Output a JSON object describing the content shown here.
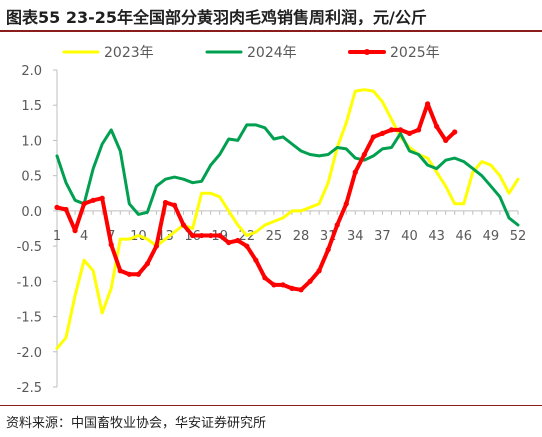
{
  "title": "图表55 23-25年全国部分黄羽肉毛鸡销售周利润，元/公斤",
  "source": "资料来源：中国畜牧业协会，华安证券研究所",
  "chart_data": {
    "type": "line",
    "title": "图表55 23-25年全国部分黄羽肉毛鸡销售周利润，元/公斤",
    "xlabel": "",
    "ylabel": "",
    "x": [
      1,
      2,
      3,
      4,
      5,
      6,
      7,
      8,
      9,
      10,
      11,
      12,
      13,
      14,
      15,
      16,
      17,
      18,
      19,
      20,
      21,
      22,
      23,
      24,
      25,
      26,
      27,
      28,
      29,
      30,
      31,
      32,
      33,
      34,
      35,
      36,
      37,
      38,
      39,
      40,
      41,
      42,
      43,
      44,
      45,
      46,
      47,
      48,
      49,
      50,
      51,
      52
    ],
    "x_tick_labels": [
      "1",
      "4",
      "7",
      "10",
      "13",
      "16",
      "19",
      "22",
      "25",
      "28",
      "31",
      "34",
      "37",
      "40",
      "43",
      "46",
      "49",
      "52"
    ],
    "x_tick_values": [
      1,
      4,
      7,
      10,
      13,
      16,
      19,
      22,
      25,
      28,
      31,
      34,
      37,
      40,
      43,
      46,
      49,
      52
    ],
    "ylim": [
      -2.5,
      2.0
    ],
    "y_ticks": [
      -2.5,
      -2.0,
      -1.5,
      -1.0,
      -0.5,
      0.0,
      0.5,
      1.0,
      1.5,
      2.0
    ],
    "y_tick_labels": [
      "-2.5",
      "-2.0",
      "-1.5",
      "-1.0",
      "-0.5",
      "0.0",
      "0.5",
      "1.0",
      "1.5",
      "2.0"
    ],
    "grid": false,
    "legend_position": "top",
    "series": [
      {
        "name": "2023年",
        "color": "#ffff00",
        "width": 3,
        "marker": false,
        "values": [
          -1.95,
          -1.8,
          -1.2,
          -0.7,
          -0.85,
          -1.45,
          -1.1,
          -0.4,
          -0.4,
          -0.35,
          -0.4,
          -0.5,
          -0.4,
          -0.3,
          -0.2,
          -0.25,
          0.25,
          0.25,
          0.2,
          0.0,
          -0.2,
          -0.35,
          -0.3,
          -0.2,
          -0.15,
          -0.1,
          0.0,
          0.0,
          0.05,
          0.1,
          0.4,
          0.9,
          1.25,
          1.7,
          1.72,
          1.7,
          1.55,
          1.3,
          1.05,
          0.9,
          0.8,
          0.75,
          0.55,
          0.35,
          0.1,
          0.1,
          0.55,
          0.7,
          0.65,
          0.5,
          0.25,
          0.45
        ]
      },
      {
        "name": "2024年",
        "color": "#00a050",
        "width": 3,
        "marker": false,
        "values": [
          0.78,
          0.4,
          0.15,
          0.1,
          0.6,
          0.95,
          1.15,
          0.85,
          0.1,
          -0.05,
          -0.02,
          0.35,
          0.45,
          0.48,
          0.45,
          0.4,
          0.42,
          0.65,
          0.8,
          1.02,
          1.0,
          1.22,
          1.22,
          1.18,
          1.02,
          1.05,
          0.95,
          0.85,
          0.8,
          0.78,
          0.8,
          0.9,
          0.88,
          0.75,
          0.72,
          0.78,
          0.88,
          0.9,
          1.1,
          0.85,
          0.8,
          0.65,
          0.6,
          0.72,
          0.75,
          0.7,
          0.6,
          0.5,
          0.35,
          0.2,
          -0.1,
          -0.2
        ]
      },
      {
        "name": "2025年",
        "color": "#ff0000",
        "width": 4,
        "marker": true,
        "values": [
          0.05,
          0.02,
          -0.28,
          0.1,
          0.15,
          0.18,
          -0.48,
          -0.85,
          -0.9,
          -0.9,
          -0.75,
          -0.5,
          0.12,
          0.08,
          -0.2,
          -0.35,
          -0.35,
          -0.35,
          -0.35,
          -0.45,
          -0.42,
          -0.5,
          -0.7,
          -0.95,
          -1.05,
          -1.05,
          -1.1,
          -1.12,
          -1.0,
          -0.85,
          -0.55,
          -0.2,
          0.1,
          0.55,
          0.8,
          1.05,
          1.1,
          1.15,
          1.15,
          1.1,
          1.15,
          1.52,
          1.2,
          1.0,
          1.12,
          null,
          null,
          null,
          null,
          null,
          null,
          null
        ]
      }
    ]
  }
}
